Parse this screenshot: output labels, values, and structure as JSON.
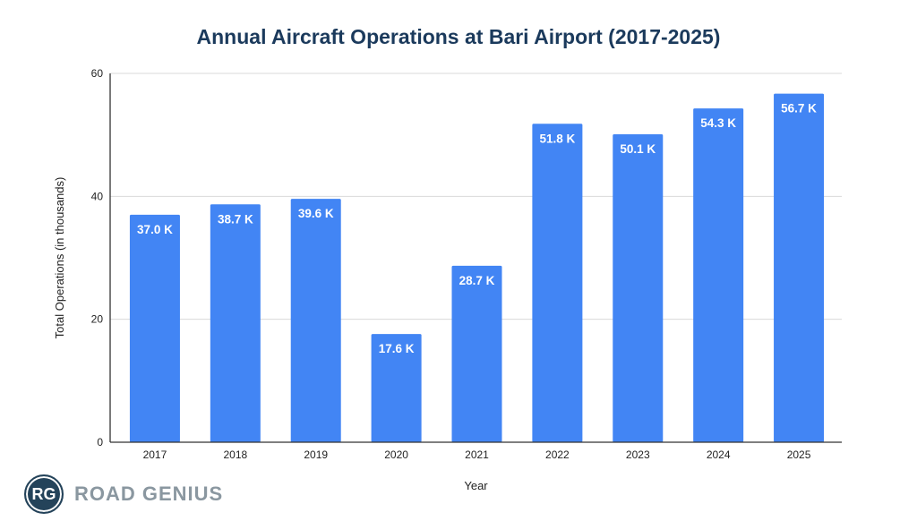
{
  "chart_data": {
    "type": "bar",
    "title": "Annual Aircraft Operations at Bari Airport (2017-2025)",
    "xlabel": "Year",
    "ylabel": "Total Operations (in thousands)",
    "ylim": [
      0,
      60
    ],
    "yticks": [
      0,
      20,
      40,
      60
    ],
    "grid": true,
    "categories": [
      "2017",
      "2018",
      "2019",
      "2020",
      "2021",
      "2022",
      "2023",
      "2024",
      "2025"
    ],
    "values": [
      37.0,
      38.7,
      39.6,
      17.6,
      28.7,
      51.8,
      50.1,
      54.3,
      56.7
    ],
    "data_labels": [
      "37.0 K",
      "38.7 K",
      "39.6 K",
      "17.6 K",
      "28.7 K",
      "51.8 K",
      "50.1 K",
      "54.3 K",
      "56.7 K"
    ],
    "bar_color": "#4285f4"
  },
  "logo": {
    "initials": "RG",
    "name": "ROAD GENIUS"
  }
}
